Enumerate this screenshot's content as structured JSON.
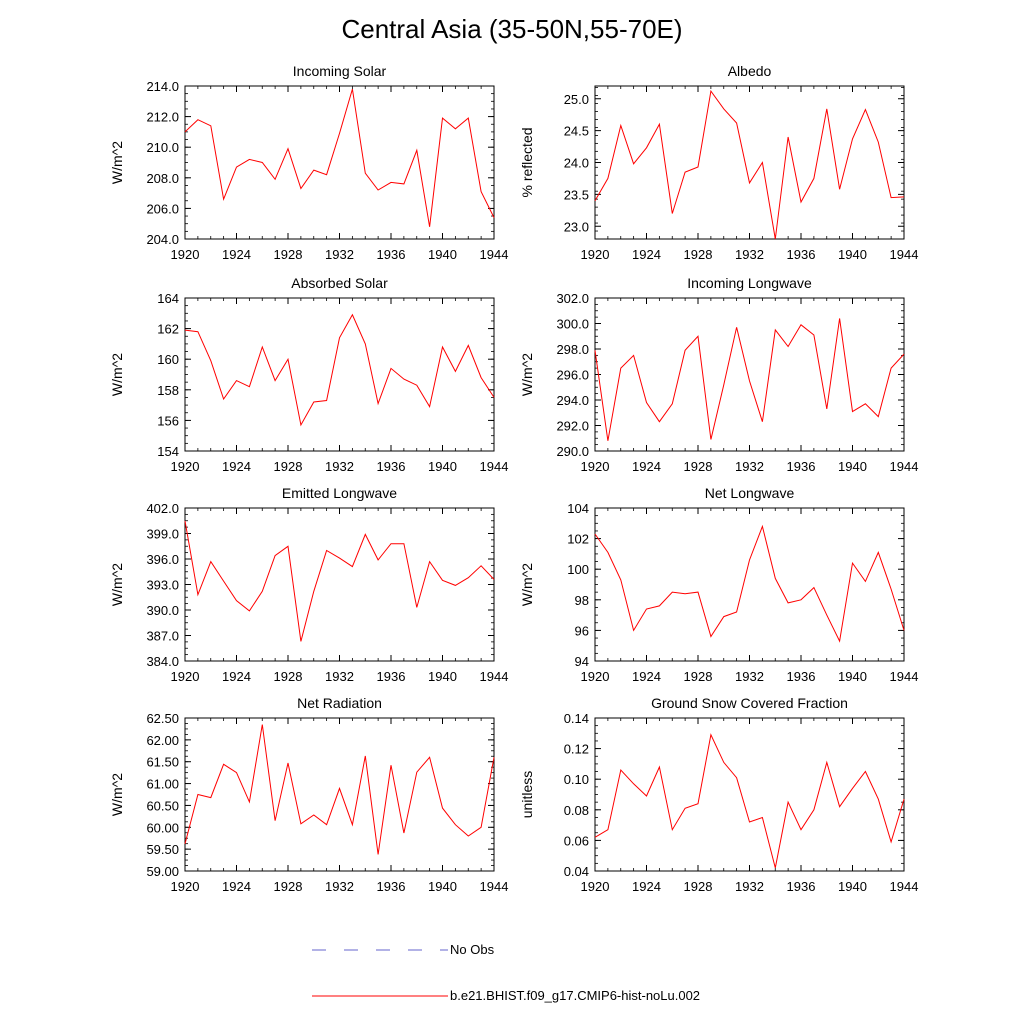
{
  "figure": {
    "title": "Central Asia (35-50N,55-70E)",
    "series_color": "#ff0000",
    "obs_color": "#6666cc"
  },
  "legend": {
    "obs_label": "No Obs",
    "model_label": "b.e21.BHIST.f09_g17.CMIP6-hist-noLu.002"
  },
  "chart_data": [
    {
      "type": "line",
      "title": "Incoming Solar",
      "ylabel": "W/m^2",
      "x": [
        1920,
        1921,
        1922,
        1923,
        1924,
        1925,
        1926,
        1927,
        1928,
        1929,
        1930,
        1931,
        1932,
        1933,
        1934,
        1935,
        1936,
        1937,
        1938,
        1939,
        1940,
        1941,
        1942,
        1943,
        1944
      ],
      "values": [
        211.0,
        211.8,
        211.4,
        206.6,
        208.7,
        209.2,
        209.0,
        207.9,
        209.9,
        207.3,
        208.5,
        208.2,
        210.9,
        213.8,
        208.3,
        207.2,
        207.7,
        207.6,
        209.8,
        204.8,
        211.9,
        211.2,
        211.9,
        207.1,
        205.4
      ],
      "ylim": [
        204.0,
        214.0
      ],
      "yticks": [
        "204.0",
        "206.0",
        "208.0",
        "210.0",
        "212.0",
        "214.0"
      ],
      "xlim": [
        1920,
        1944
      ],
      "xticks": [
        "1920",
        "1924",
        "1928",
        "1932",
        "1936",
        "1940",
        "1944"
      ]
    },
    {
      "type": "line",
      "title": "Albedo",
      "ylabel": "% reflected",
      "x": [
        1920,
        1921,
        1922,
        1923,
        1924,
        1925,
        1926,
        1927,
        1928,
        1929,
        1930,
        1931,
        1932,
        1933,
        1934,
        1935,
        1936,
        1937,
        1938,
        1939,
        1940,
        1941,
        1942,
        1943,
        1944
      ],
      "values": [
        23.4,
        23.75,
        24.58,
        23.98,
        24.23,
        24.6,
        23.2,
        23.85,
        23.93,
        25.12,
        24.84,
        24.62,
        23.68,
        24.0,
        22.8,
        24.4,
        23.38,
        23.75,
        24.84,
        23.58,
        24.37,
        24.83,
        24.32,
        23.45,
        23.46
      ],
      "ylim": [
        22.8,
        25.2
      ],
      "yticks": [
        "23.0",
        "23.5",
        "24.0",
        "24.5",
        "25.0"
      ],
      "xlim": [
        1920,
        1944
      ],
      "xticks": [
        "1920",
        "1924",
        "1928",
        "1932",
        "1936",
        "1940",
        "1944"
      ]
    },
    {
      "type": "line",
      "title": "Absorbed Solar",
      "ylabel": "W/m^2",
      "x": [
        1920,
        1921,
        1922,
        1923,
        1924,
        1925,
        1926,
        1927,
        1928,
        1929,
        1930,
        1931,
        1932,
        1933,
        1934,
        1935,
        1936,
        1937,
        1938,
        1939,
        1940,
        1941,
        1942,
        1943,
        1944
      ],
      "values": [
        161.9,
        161.8,
        159.9,
        157.4,
        158.6,
        158.2,
        160.8,
        158.6,
        160.0,
        155.7,
        157.2,
        157.3,
        161.4,
        162.9,
        161.0,
        157.1,
        159.4,
        158.7,
        158.3,
        156.9,
        160.8,
        159.2,
        160.9,
        158.8,
        157.5
      ],
      "ylim": [
        154,
        164
      ],
      "yticks": [
        "154",
        "156",
        "158",
        "160",
        "162",
        "164"
      ],
      "xlim": [
        1920,
        1944
      ],
      "xticks": [
        "1920",
        "1924",
        "1928",
        "1932",
        "1936",
        "1940",
        "1944"
      ]
    },
    {
      "type": "line",
      "title": "Incoming Longwave",
      "ylabel": "W/m^2",
      "x": [
        1920,
        1921,
        1922,
        1923,
        1924,
        1925,
        1926,
        1927,
        1928,
        1929,
        1930,
        1931,
        1932,
        1933,
        1934,
        1935,
        1936,
        1937,
        1938,
        1939,
        1940,
        1941,
        1942,
        1943,
        1944
      ],
      "values": [
        297.9,
        290.8,
        296.5,
        297.5,
        293.8,
        292.3,
        293.7,
        297.9,
        299.0,
        290.9,
        295.2,
        299.7,
        295.5,
        292.3,
        299.5,
        298.2,
        299.9,
        299.1,
        293.3,
        300.4,
        293.1,
        293.7,
        292.7,
        296.5,
        297.6
      ],
      "ylim": [
        290.0,
        302.0
      ],
      "yticks": [
        "290.0",
        "292.0",
        "294.0",
        "296.0",
        "298.0",
        "300.0",
        "302.0"
      ],
      "xlim": [
        1920,
        1944
      ],
      "xticks": [
        "1920",
        "1924",
        "1928",
        "1932",
        "1936",
        "1940",
        "1944"
      ]
    },
    {
      "type": "line",
      "title": "Emitted Longwave",
      "ylabel": "W/m^2",
      "x": [
        1920,
        1921,
        1922,
        1923,
        1924,
        1925,
        1926,
        1927,
        1928,
        1929,
        1930,
        1931,
        1932,
        1933,
        1934,
        1935,
        1936,
        1937,
        1938,
        1939,
        1940,
        1941,
        1942,
        1943,
        1944
      ],
      "values": [
        400.5,
        391.8,
        395.7,
        393.4,
        391.1,
        389.9,
        392.2,
        396.4,
        397.5,
        386.3,
        392.2,
        397.0,
        396.1,
        395.1,
        398.9,
        395.9,
        397.8,
        397.8,
        390.3,
        395.7,
        393.5,
        392.9,
        393.8,
        395.2,
        393.6
      ],
      "ylim": [
        384.0,
        402.0
      ],
      "yticks": [
        "384.0",
        "387.0",
        "390.0",
        "393.0",
        "396.0",
        "399.0",
        "402.0"
      ],
      "xlim": [
        1920,
        1944
      ],
      "xticks": [
        "1920",
        "1924",
        "1928",
        "1932",
        "1936",
        "1940",
        "1944"
      ]
    },
    {
      "type": "line",
      "title": "Net Longwave",
      "ylabel": "W/m^2",
      "x": [
        1920,
        1921,
        1922,
        1923,
        1924,
        1925,
        1926,
        1927,
        1928,
        1929,
        1930,
        1931,
        1932,
        1933,
        1934,
        1935,
        1936,
        1937,
        1938,
        1939,
        1940,
        1941,
        1942,
        1943,
        1944
      ],
      "values": [
        102.3,
        101.1,
        99.3,
        96.0,
        97.4,
        97.6,
        98.5,
        98.4,
        98.5,
        95.6,
        96.9,
        97.2,
        100.6,
        102.8,
        99.4,
        97.8,
        98.0,
        98.8,
        97.0,
        95.3,
        100.4,
        99.2,
        101.1,
        98.7,
        96.0
      ],
      "ylim": [
        94,
        104
      ],
      "yticks": [
        "94",
        "96",
        "98",
        "100",
        "102",
        "104"
      ],
      "xlim": [
        1920,
        1944
      ],
      "xticks": [
        "1920",
        "1924",
        "1928",
        "1932",
        "1936",
        "1940",
        "1944"
      ]
    },
    {
      "type": "line",
      "title": "Net Radiation",
      "ylabel": "W/m^2",
      "x": [
        1920,
        1921,
        1922,
        1923,
        1924,
        1925,
        1926,
        1927,
        1928,
        1929,
        1930,
        1931,
        1932,
        1933,
        1934,
        1935,
        1936,
        1937,
        1938,
        1939,
        1940,
        1941,
        1942,
        1943,
        1944
      ],
      "values": [
        59.62,
        60.75,
        60.68,
        61.44,
        61.25,
        60.58,
        62.35,
        60.15,
        61.47,
        60.08,
        60.28,
        60.06,
        60.89,
        60.06,
        61.63,
        59.38,
        61.42,
        59.87,
        61.26,
        61.6,
        60.44,
        60.06,
        59.8,
        60.0,
        61.6
      ],
      "ylim": [
        59.0,
        62.5
      ],
      "yticks": [
        "59.00",
        "59.50",
        "60.00",
        "60.50",
        "61.00",
        "61.50",
        "62.00",
        "62.50"
      ],
      "xlim": [
        1920,
        1944
      ],
      "xticks": [
        "1920",
        "1924",
        "1928",
        "1932",
        "1936",
        "1940",
        "1944"
      ]
    },
    {
      "type": "line",
      "title": "Ground Snow Covered Fraction",
      "ylabel": "unitless",
      "x": [
        1920,
        1921,
        1922,
        1923,
        1924,
        1925,
        1926,
        1927,
        1928,
        1929,
        1930,
        1931,
        1932,
        1933,
        1934,
        1935,
        1936,
        1937,
        1938,
        1939,
        1940,
        1941,
        1942,
        1943,
        1944
      ],
      "values": [
        0.062,
        0.067,
        0.106,
        0.097,
        0.089,
        0.108,
        0.067,
        0.081,
        0.084,
        0.129,
        0.111,
        0.101,
        0.072,
        0.075,
        0.042,
        0.085,
        0.067,
        0.08,
        0.111,
        0.082,
        0.094,
        0.105,
        0.087,
        0.059,
        0.087
      ],
      "ylim": [
        0.04,
        0.14
      ],
      "yticks": [
        "0.04",
        "0.06",
        "0.08",
        "0.10",
        "0.12",
        "0.14"
      ],
      "xlim": [
        1920,
        1944
      ],
      "xticks": [
        "1920",
        "1924",
        "1928",
        "1932",
        "1936",
        "1940",
        "1944"
      ]
    }
  ]
}
